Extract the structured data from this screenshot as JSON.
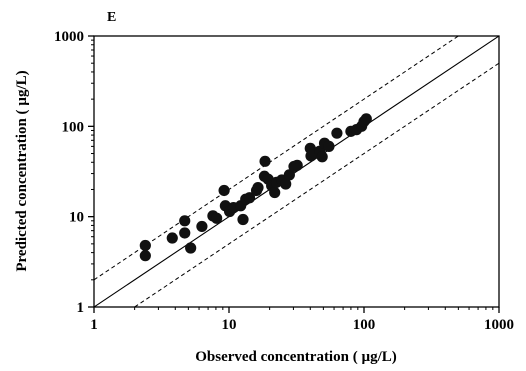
{
  "chart_data": {
    "type": "scatter",
    "panel_label": "E",
    "xlabel": "Observed concentration ( µg/L)",
    "ylabel": "Predicted concentration ( µg/L)",
    "xscale": "log",
    "yscale": "log",
    "xlim": [
      1,
      1000
    ],
    "ylim": [
      1,
      1000
    ],
    "xticks": [
      "1",
      "10",
      "100",
      "1000"
    ],
    "yticks": [
      "1",
      "10",
      "100",
      "1000"
    ],
    "grid": false,
    "reference_lines": [
      {
        "style": "solid",
        "factor": 1
      },
      {
        "style": "dashed",
        "factor": 2
      },
      {
        "style": "dashed",
        "factor": 0.5
      }
    ],
    "points": [
      {
        "x": 2.4,
        "y": 4.8
      },
      {
        "x": 2.4,
        "y": 3.7
      },
      {
        "x": 3.8,
        "y": 5.8
      },
      {
        "x": 4.7,
        "y": 9.0
      },
      {
        "x": 4.7,
        "y": 6.6
      },
      {
        "x": 5.2,
        "y": 4.5
      },
      {
        "x": 6.3,
        "y": 7.8
      },
      {
        "x": 7.6,
        "y": 10.2
      },
      {
        "x": 8.1,
        "y": 9.6
      },
      {
        "x": 9.2,
        "y": 19.5
      },
      {
        "x": 9.4,
        "y": 13.2
      },
      {
        "x": 10.1,
        "y": 11.4
      },
      {
        "x": 10.8,
        "y": 12.6
      },
      {
        "x": 12.2,
        "y": 13.2
      },
      {
        "x": 12.7,
        "y": 9.3
      },
      {
        "x": 13.3,
        "y": 15.6
      },
      {
        "x": 14.2,
        "y": 16.2
      },
      {
        "x": 16.0,
        "y": 19.5
      },
      {
        "x": 16.4,
        "y": 21.0
      },
      {
        "x": 18.5,
        "y": 41.0
      },
      {
        "x": 18.3,
        "y": 28.0
      },
      {
        "x": 19.5,
        "y": 26.0
      },
      {
        "x": 20.7,
        "y": 22.0
      },
      {
        "x": 21.8,
        "y": 18.5
      },
      {
        "x": 22.5,
        "y": 24.0
      },
      {
        "x": 24.6,
        "y": 25.5
      },
      {
        "x": 26.3,
        "y": 23.0
      },
      {
        "x": 28.0,
        "y": 29.0
      },
      {
        "x": 30.3,
        "y": 36.0
      },
      {
        "x": 32.0,
        "y": 37.0
      },
      {
        "x": 40.0,
        "y": 57.0
      },
      {
        "x": 40.5,
        "y": 47.0
      },
      {
        "x": 43.0,
        "y": 51.0
      },
      {
        "x": 47.0,
        "y": 53.0
      },
      {
        "x": 49.0,
        "y": 46.0
      },
      {
        "x": 51.0,
        "y": 65.0
      },
      {
        "x": 55.0,
        "y": 60.0
      },
      {
        "x": 63.0,
        "y": 84.0
      },
      {
        "x": 80.0,
        "y": 88.0
      },
      {
        "x": 88.0,
        "y": 92.0
      },
      {
        "x": 96.0,
        "y": 100.0
      },
      {
        "x": 100.0,
        "y": 113.0
      },
      {
        "x": 104.0,
        "y": 121.0
      }
    ]
  }
}
